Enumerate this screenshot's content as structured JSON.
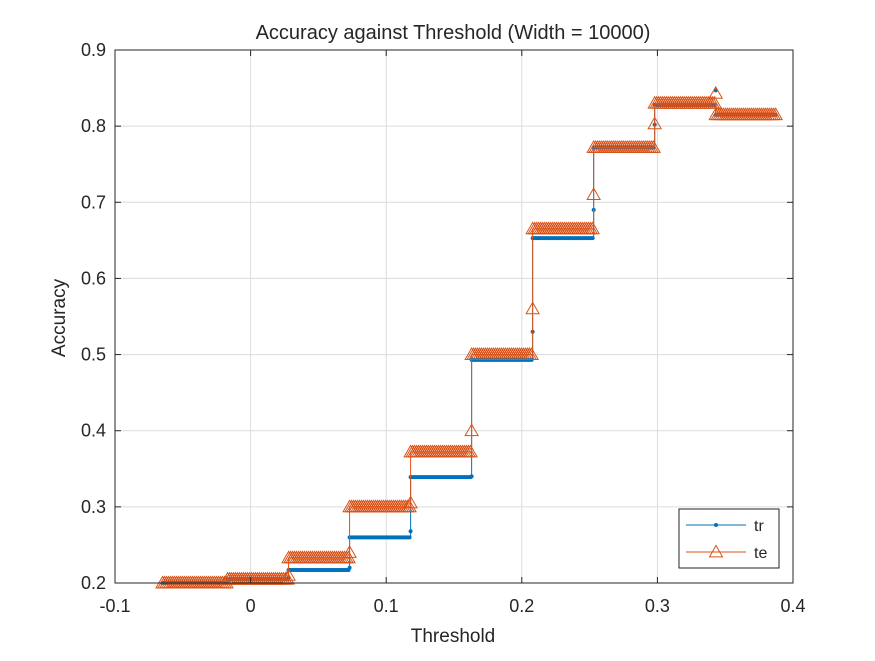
{
  "chart_data": {
    "type": "line",
    "title": "Accuracy against Threshold (Width = 10000)",
    "xlabel": "Threshold",
    "ylabel": "Accuracy",
    "xlim": [
      -0.1,
      0.4
    ],
    "ylim": [
      0.2,
      0.9
    ],
    "xticks": [
      -0.1,
      0,
      0.1,
      0.2,
      0.3,
      0.4
    ],
    "xtick_labels": [
      "-0.1",
      "0",
      "0.1",
      "0.2",
      "0.3",
      "0.4"
    ],
    "yticks": [
      0.2,
      0.3,
      0.4,
      0.5,
      0.6,
      0.7,
      0.8,
      0.9
    ],
    "ytick_labels": [
      "0.2",
      "0.3",
      "0.4",
      "0.5",
      "0.6",
      "0.7",
      "0.8",
      "0.9"
    ],
    "grid": true,
    "legend_position": "bottom-right",
    "series": [
      {
        "name": "tr",
        "color": "#0072BD",
        "marker": "dot",
        "segments": [
          {
            "x": [
              -0.065,
              -0.017
            ],
            "y": 0.2
          },
          {
            "x": [
              -0.017,
              0.028
            ],
            "y": 0.205
          },
          {
            "x": [
              0.028,
              0.073
            ],
            "y": 0.217
          },
          {
            "x": [
              0.073,
              0.118
            ],
            "y": 0.26
          },
          {
            "x": [
              0.118,
              0.163
            ],
            "y": 0.339
          },
          {
            "x": [
              0.163,
              0.208
            ],
            "y": 0.493
          },
          {
            "x": [
              0.208,
              0.253
            ],
            "y": 0.653
          },
          {
            "x": [
              0.253,
              0.298
            ],
            "y": 0.772
          },
          {
            "x": [
              0.298,
              0.343
            ],
            "y": 0.828
          },
          {
            "x": [
              0.343,
              0.388
            ],
            "y": 0.815
          }
        ],
        "transitions": [
          {
            "x": 0.028,
            "y": 0.207
          },
          {
            "x": 0.073,
            "y": 0.22
          },
          {
            "x": 0.118,
            "y": 0.268
          },
          {
            "x": 0.163,
            "y": 0.34
          },
          {
            "x": 0.208,
            "y": 0.53
          },
          {
            "x": 0.253,
            "y": 0.69
          },
          {
            "x": 0.298,
            "y": 0.802
          },
          {
            "x": 0.343,
            "y": 0.847
          }
        ]
      },
      {
        "name": "te",
        "color": "#D95319",
        "marker": "triangle",
        "segments": [
          {
            "x": [
              -0.065,
              -0.017
            ],
            "y": 0.2
          },
          {
            "x": [
              -0.017,
              0.028
            ],
            "y": 0.205
          },
          {
            "x": [
              0.028,
              0.073
            ],
            "y": 0.233
          },
          {
            "x": [
              0.073,
              0.118
            ],
            "y": 0.3
          },
          {
            "x": [
              0.118,
              0.163
            ],
            "y": 0.372
          },
          {
            "x": [
              0.163,
              0.208
            ],
            "y": 0.5
          },
          {
            "x": [
              0.208,
              0.253
            ],
            "y": 0.665
          },
          {
            "x": [
              0.253,
              0.298
            ],
            "y": 0.772
          },
          {
            "x": [
              0.298,
              0.343
            ],
            "y": 0.83
          },
          {
            "x": [
              0.343,
              0.388
            ],
            "y": 0.815
          }
        ],
        "transitions": [
          {
            "x": 0.028,
            "y": 0.21
          },
          {
            "x": 0.073,
            "y": 0.24
          },
          {
            "x": 0.118,
            "y": 0.305
          },
          {
            "x": 0.163,
            "y": 0.4
          },
          {
            "x": 0.208,
            "y": 0.56
          },
          {
            "x": 0.253,
            "y": 0.71
          },
          {
            "x": 0.298,
            "y": 0.803
          },
          {
            "x": 0.343,
            "y": 0.843
          }
        ]
      }
    ]
  }
}
